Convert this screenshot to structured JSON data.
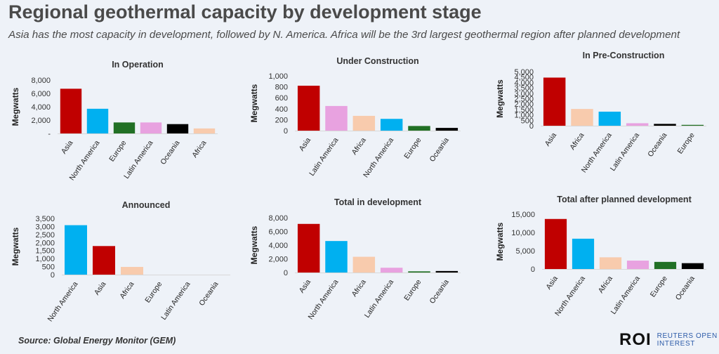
{
  "header": {
    "title": "Regional geothermal capacity by development stage",
    "subtitle": "Asia has the most capacity in development, followed by N. America. Africa will be the 3rd largest geothermal region after planned development"
  },
  "footer": {
    "source": "Source:  Global Energy Monitor (GEM)",
    "logo_mark": "ROI",
    "logo_line1": "REUTERS OPEN",
    "logo_line2": "INTEREST"
  },
  "colors": {
    "Asia": "#c00000",
    "North America": "#00b0f0",
    "Europe": "#217025",
    "Latin America": "#e8a2e0",
    "Oceania": "#000000",
    "Africa": "#f8cbad"
  },
  "chart_data": [
    {
      "type": "bar",
      "title": "In Operation",
      "ylabel": "Megwatts",
      "categories": [
        "Asia",
        "North America",
        "Europe",
        "Latin America",
        "Oceania",
        "Africa"
      ],
      "values": [
        6700,
        3700,
        1650,
        1650,
        1400,
        750
      ],
      "ylim": [
        0,
        8000
      ],
      "yticks": [
        0,
        2000,
        4000,
        6000,
        8000
      ],
      "ytick_labels": [
        "-",
        "2,000",
        "4,000",
        "6,000",
        "8,000"
      ]
    },
    {
      "type": "bar",
      "title": "Under Construction",
      "ylabel": "Megwatts",
      "categories": [
        "Asia",
        "Latin America",
        "Africa",
        "North America",
        "Europe",
        "Oceania"
      ],
      "values": [
        820,
        450,
        270,
        215,
        85,
        50
      ],
      "ylim": [
        0,
        1000
      ],
      "yticks": [
        0,
        200,
        400,
        600,
        800,
        1000
      ],
      "ytick_labels": [
        "0",
        "200",
        "400",
        "600",
        "800",
        "1,000"
      ]
    },
    {
      "type": "bar",
      "title": "In Pre-Construction",
      "ylabel": "Megwatts",
      "categories": [
        "Asia",
        "Africa",
        "North America",
        "Latin America",
        "Oceania",
        "Europe"
      ],
      "values": [
        4450,
        1550,
        1300,
        230,
        170,
        80
      ],
      "ylim": [
        0,
        5000
      ],
      "yticks": [
        0,
        500,
        1000,
        1500,
        2000,
        2500,
        3000,
        3500,
        4000,
        4500,
        5000
      ],
      "ytick_labels": [
        "0",
        "500",
        "1,000",
        "1,500",
        "2,000",
        "2,500",
        "3,000",
        "3,500",
        "4,000",
        "4,500",
        "5,000"
      ]
    },
    {
      "type": "bar",
      "title": "Announced",
      "ylabel": "Megwatts",
      "categories": [
        "North America",
        "Asia",
        "Africa",
        "Europe",
        "Latin America",
        "Oceania"
      ],
      "values": [
        3080,
        1780,
        480,
        0,
        0,
        0
      ],
      "ylim": [
        0,
        3500
      ],
      "yticks": [
        0,
        500,
        1000,
        1500,
        2000,
        2500,
        3000,
        3500
      ],
      "ytick_labels": [
        "0",
        "500",
        "1,000",
        "1,500",
        "2,000",
        "2,500",
        "3,000",
        "3,500"
      ]
    },
    {
      "type": "bar",
      "title": "Total in development",
      "ylabel": "Megwatts",
      "categories": [
        "Asia",
        "North America",
        "Africa",
        "Latin America",
        "Europe",
        "Oceania"
      ],
      "values": [
        7100,
        4600,
        2300,
        700,
        170,
        220
      ],
      "ylim": [
        0,
        8000
      ],
      "yticks": [
        0,
        2000,
        4000,
        6000,
        8000
      ],
      "ytick_labels": [
        "0",
        "2,000",
        "4,000",
        "6,000",
        "8,000"
      ]
    },
    {
      "type": "bar",
      "title": "Total after planned development",
      "ylabel": "Megwatts",
      "categories": [
        "Asia",
        "North America",
        "Africa",
        "Latin America",
        "Europe",
        "Oceania"
      ],
      "values": [
        13700,
        8300,
        3200,
        2300,
        1950,
        1600
      ],
      "ylim": [
        0,
        15000
      ],
      "yticks": [
        0,
        5000,
        10000,
        15000
      ],
      "ytick_labels": [
        "0",
        "5,000",
        "10,000",
        "15,000"
      ]
    }
  ]
}
